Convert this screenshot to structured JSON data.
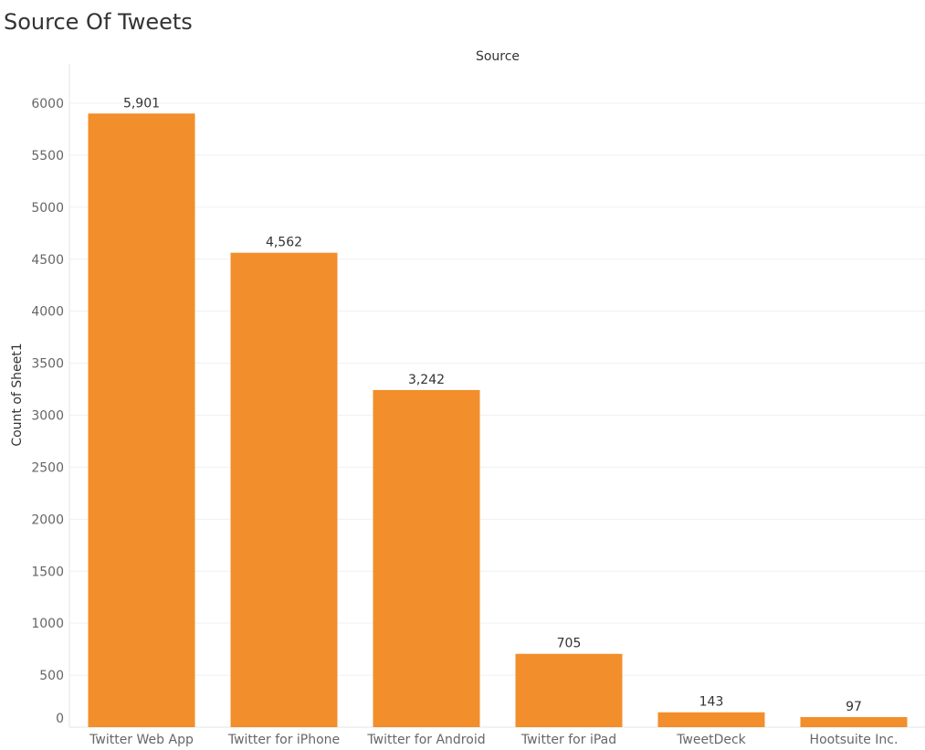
{
  "title": "Source Of Tweets",
  "chart_data": {
    "type": "bar",
    "column_header": "Source",
    "ylabel": "Count of Sheet1",
    "categories": [
      "Twitter Web App",
      "Twitter for iPhone",
      "Twitter for Android",
      "Twitter for iPad",
      "TweetDeck",
      "Hootsuite Inc."
    ],
    "values": [
      5901,
      4562,
      3242,
      705,
      143,
      97
    ],
    "value_labels": [
      "5,901",
      "4,562",
      "3,242",
      "705",
      "143",
      "97"
    ],
    "yticks": [
      0,
      500,
      1000,
      1500,
      2000,
      2500,
      3000,
      3500,
      4000,
      4500,
      5000,
      5500,
      6000
    ],
    "ylim": [
      0,
      6000
    ],
    "grid": true,
    "bar_color": "#F28E2B"
  }
}
